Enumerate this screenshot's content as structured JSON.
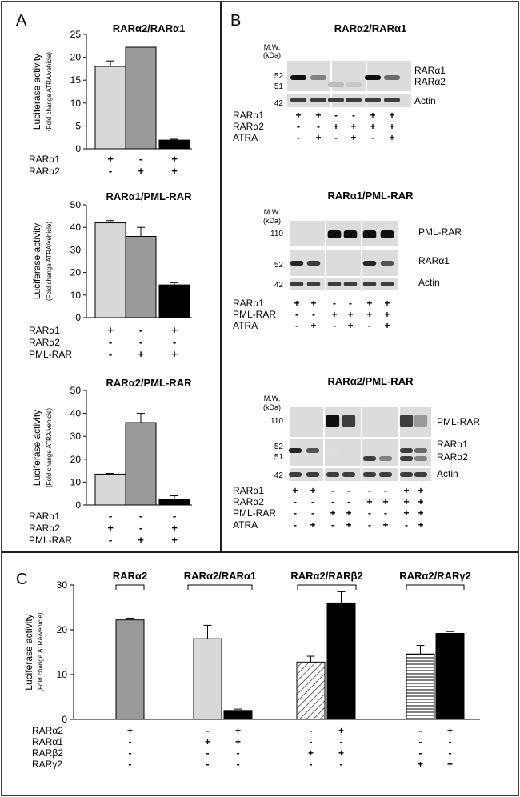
{
  "panels": {
    "A": {
      "letter": "A",
      "charts": [
        {
          "title": "RARα2/RARα1",
          "ylabel": "Luciferase activity",
          "ylabel_sub": "(Fold change ATRA/vehicle)",
          "yticks": [
            "0",
            "5",
            "10",
            "15",
            "20",
            "25"
          ],
          "rows": [
            {
              "label": "RARα1",
              "marks": [
                "+",
                "-",
                "+"
              ]
            },
            {
              "label": "RARα2",
              "marks": [
                "-",
                "+",
                "+"
              ]
            }
          ]
        },
        {
          "title": "RARα1/PML-RAR",
          "ylabel": "Luciferase activity",
          "ylabel_sub": "(Fold change ATRA/vehicle)",
          "yticks": [
            "0",
            "10",
            "20",
            "30",
            "40",
            "50"
          ],
          "rows": [
            {
              "label": "RARα1",
              "marks": [
                "+",
                "-",
                "+"
              ]
            },
            {
              "label": "RARα2",
              "marks": [
                "-",
                "-",
                "-"
              ]
            },
            {
              "label": "PML-RAR",
              "marks": [
                "-",
                "+",
                "+"
              ]
            }
          ]
        },
        {
          "title": "RARα2/PML-RAR",
          "ylabel": "Luciferase activity",
          "ylabel_sub": "(Fold change ATRA/vehicle)",
          "yticks": [
            "0",
            "10",
            "20",
            "30",
            "40",
            "50"
          ],
          "rows": [
            {
              "label": "RARα1",
              "marks": [
                "-",
                "-",
                "-"
              ]
            },
            {
              "label": "RARα2",
              "marks": [
                "+",
                "-",
                "+"
              ]
            },
            {
              "label": "PML-RAR",
              "marks": [
                "-",
                "+",
                "+"
              ]
            }
          ]
        }
      ]
    },
    "B": {
      "letter": "B",
      "blots": [
        {
          "title": "RARα2/RARα1",
          "mw_header": [
            "M.W.",
            "(kDa)"
          ],
          "mw_marks": [
            "52",
            "51",
            "42"
          ],
          "band_labels": [
            "RARα1",
            "RARα2",
            "Actin"
          ],
          "rows": [
            {
              "label": "RARα1",
              "marks": [
                "+",
                "+",
                "-",
                "-",
                "+",
                "+"
              ]
            },
            {
              "label": "RARα2",
              "marks": [
                "-",
                "-",
                "+",
                "+",
                "+",
                "+"
              ]
            },
            {
              "label": "ATRA",
              "marks": [
                "-",
                "+",
                "-",
                "+",
                "-",
                "+"
              ]
            }
          ]
        },
        {
          "title": "RARα1/PML-RAR",
          "mw_header": [
            "M.W.",
            "(kDa)"
          ],
          "mw_marks": [
            "110",
            "52",
            "42"
          ],
          "band_labels": [
            "PML-RAR",
            "RARα1",
            "Actin"
          ],
          "rows": [
            {
              "label": "RARα1",
              "marks": [
                "+",
                "+",
                "-",
                "-",
                "+",
                "+"
              ]
            },
            {
              "label": "PML-RAR",
              "marks": [
                "-",
                "-",
                "+",
                "+",
                "+",
                "+"
              ]
            },
            {
              "label": "ATRA",
              "marks": [
                "-",
                "+",
                "-",
                "+",
                "-",
                "+"
              ]
            }
          ]
        },
        {
          "title": "RARα2/PML-RAR",
          "mw_header": [
            "M.W.",
            "(kDa)"
          ],
          "mw_marks": [
            "110",
            "52",
            "51",
            "42"
          ],
          "band_labels": [
            "PML-RAR",
            "RARα1",
            "RARα2",
            "Actin"
          ],
          "rows": [
            {
              "label": "RARα1",
              "marks": [
                "+",
                "+",
                "-",
                "-",
                "-",
                "-",
                "+",
                "+"
              ]
            },
            {
              "label": "RARα2",
              "marks": [
                "-",
                "-",
                "-",
                "-",
                "+",
                "+",
                "+",
                "+"
              ]
            },
            {
              "label": "PML-RAR",
              "marks": [
                "-",
                "-",
                "+",
                "+",
                "-",
                "-",
                "+",
                "+"
              ]
            },
            {
              "label": "ATRA",
              "marks": [
                "-",
                "+",
                "-",
                "+",
                "-",
                "+",
                "-",
                "+"
              ]
            }
          ]
        }
      ]
    },
    "C": {
      "letter": "C",
      "ylabel": "Luciferase activity",
      "ylabel_sub": "(Fold change ATRA/vehicle)",
      "yticks": [
        "0",
        "10",
        "20",
        "30"
      ],
      "group_titles": [
        "RARα2",
        "RARα2/RARα1",
        "RARα2/RARβ2",
        "RARα2/RARγ2"
      ],
      "rows": [
        {
          "label": "RARα2",
          "marks": [
            "+",
            "-",
            "+",
            "-",
            "+",
            "-",
            "+"
          ]
        },
        {
          "label": "RARα1",
          "marks": [
            "-",
            "+",
            "+",
            "-",
            "-",
            "-",
            "-"
          ]
        },
        {
          "label": "RARβ2",
          "marks": [
            "-",
            "-",
            "-",
            "+",
            "+",
            "-",
            "-"
          ]
        },
        {
          "label": "RARγ2",
          "marks": [
            "-",
            "-",
            "-",
            "-",
            "-",
            "+",
            "+"
          ]
        }
      ]
    }
  },
  "chart_data": [
    {
      "type": "bar",
      "title": "RARα2/RARα1",
      "ylabel": "Luciferase activity (Fold change ATRA/vehicle)",
      "ylim": [
        0,
        25
      ],
      "values": [
        18,
        22.2,
        1.9
      ],
      "errors": [
        1.2,
        0,
        0.2
      ],
      "fills": [
        "#d8d8d8",
        "#9a9a9a",
        "#000000"
      ]
    },
    {
      "type": "bar",
      "title": "RARα1/PML-RAR",
      "ylabel": "Luciferase activity (Fold change ATRA/vehicle)",
      "ylim": [
        0,
        50
      ],
      "values": [
        42,
        36,
        14.5
      ],
      "errors": [
        1,
        4,
        1
      ],
      "fills": [
        "#d8d8d8",
        "#9a9a9a",
        "#000000"
      ]
    },
    {
      "type": "bar",
      "title": "RARα2/PML-RAR",
      "ylabel": "Luciferase activity (Fold change ATRA/vehicle)",
      "ylim": [
        0,
        50
      ],
      "values": [
        13.5,
        36,
        2.5
      ],
      "errors": [
        0.3,
        4,
        1.5
      ],
      "fills": [
        "#d8d8d8",
        "#9a9a9a",
        "#000000"
      ]
    },
    {
      "type": "bar",
      "title": "",
      "ylabel": "Luciferase activity (Fold change ATRA/vehicle)",
      "ylim": [
        0,
        30
      ],
      "values": [
        22.2,
        18,
        2,
        12.8,
        26,
        14.6,
        19.2
      ],
      "errors": [
        0.4,
        3,
        0.3,
        1.3,
        2.5,
        1.9,
        0.4
      ],
      "fills": [
        "#9a9a9a",
        "#d8d8d8",
        "#000000",
        "hatch",
        "#000000",
        "hlines",
        "#000000"
      ]
    }
  ]
}
